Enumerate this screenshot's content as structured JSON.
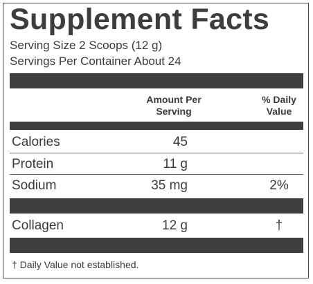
{
  "label": {
    "title": "Supplement Facts",
    "serving_size": "Serving Size 2 Scoops (12 g)",
    "servings_per_container": "Servings Per Container About 24",
    "column_headers": {
      "amount_line1": "Amount Per",
      "amount_line2": "Serving",
      "dv_line1": "% Daily",
      "dv_line2": "Value"
    },
    "rows": [
      {
        "name": "Calories",
        "amount": "45",
        "dv": ""
      },
      {
        "name": "Protein",
        "amount": "11 g",
        "dv": ""
      },
      {
        "name": "Sodium",
        "amount": "35 mg",
        "dv": "2%"
      },
      {
        "name": "Collagen",
        "amount": "12 g",
        "dv": "†"
      }
    ],
    "footnote": "† Daily Value not established."
  },
  "colors": {
    "text": "#3a3a3c",
    "bar": "#3e3e40"
  }
}
